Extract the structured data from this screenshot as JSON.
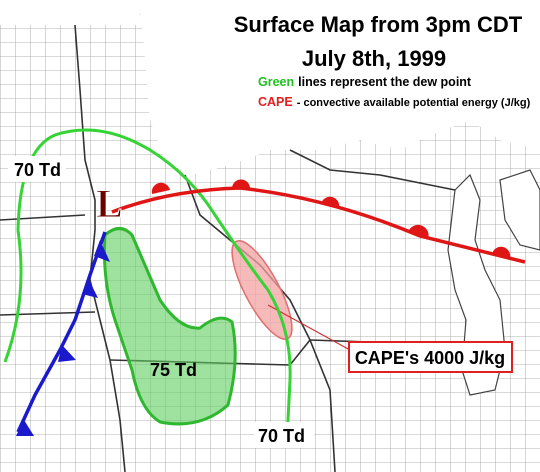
{
  "header": {
    "title": "Surface Map from 3pm CDT",
    "date": "July 8th, 1999"
  },
  "legend": {
    "green_key": "Green",
    "green_text": "lines represent the dew point",
    "cape_key": "CAPE",
    "cape_text": "- convective available potential energy (J/kg)"
  },
  "labels": {
    "low": "L",
    "td_west": "70 Td",
    "td_center": "75 Td",
    "td_south": "70 Td",
    "cape": "CAPE's 4000 J/kg"
  }
}
